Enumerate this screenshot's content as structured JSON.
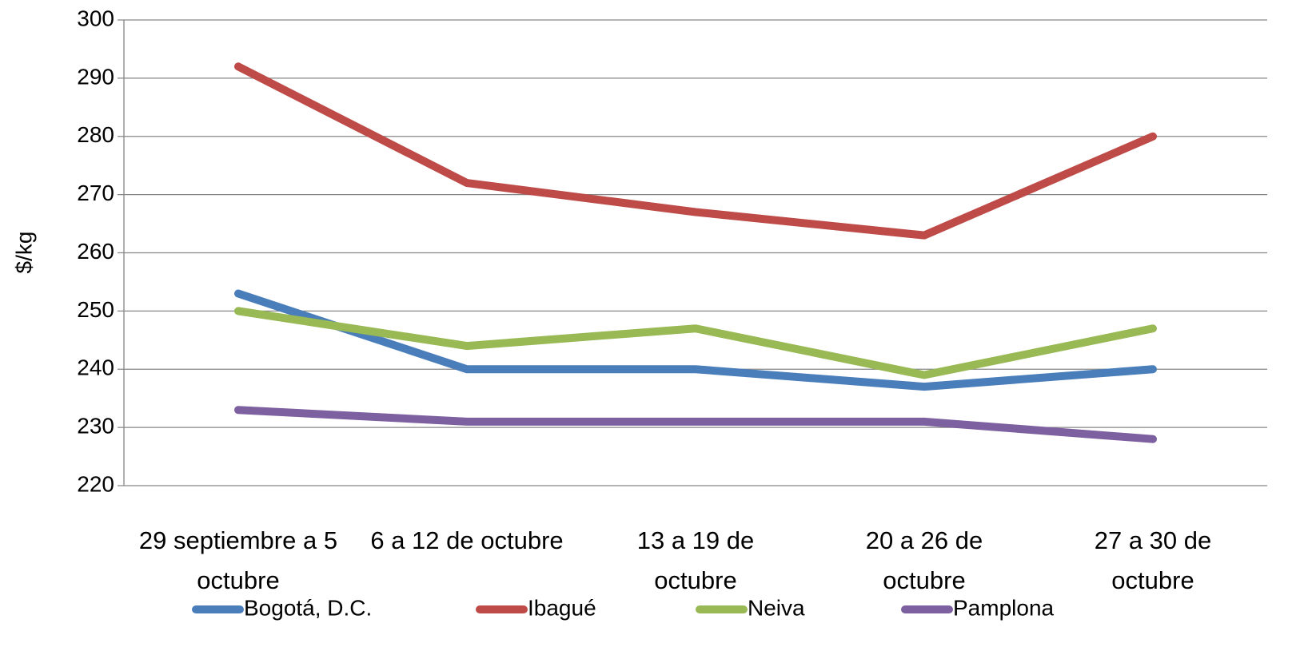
{
  "chart_data": {
    "type": "line",
    "y_label": "$/kg",
    "categories": [
      "29 septiembre a 5 octubre",
      "6 a 12 de octubre",
      "13 a 19 de octubre",
      "20 a 26 de octubre",
      "27 a 30 de octubre"
    ],
    "series": [
      {
        "name": "Bogotá, D.C.",
        "color": "#4a7ebb",
        "values": [
          253,
          240,
          240,
          237,
          240
        ]
      },
      {
        "name": "Ibagué",
        "color": "#be4b48",
        "values": [
          292,
          272,
          267,
          263,
          280
        ]
      },
      {
        "name": "Neiva",
        "color": "#98b954",
        "values": [
          250,
          244,
          247,
          239,
          247
        ]
      },
      {
        "name": "Pamplona",
        "color": "#7d60a0",
        "values": [
          233,
          231,
          231,
          231,
          228
        ]
      }
    ],
    "ylim": [
      220,
      300
    ],
    "yticks": [
      220,
      230,
      240,
      250,
      260,
      270,
      280,
      290,
      300
    ],
    "grid": true,
    "legend": "bottom"
  }
}
